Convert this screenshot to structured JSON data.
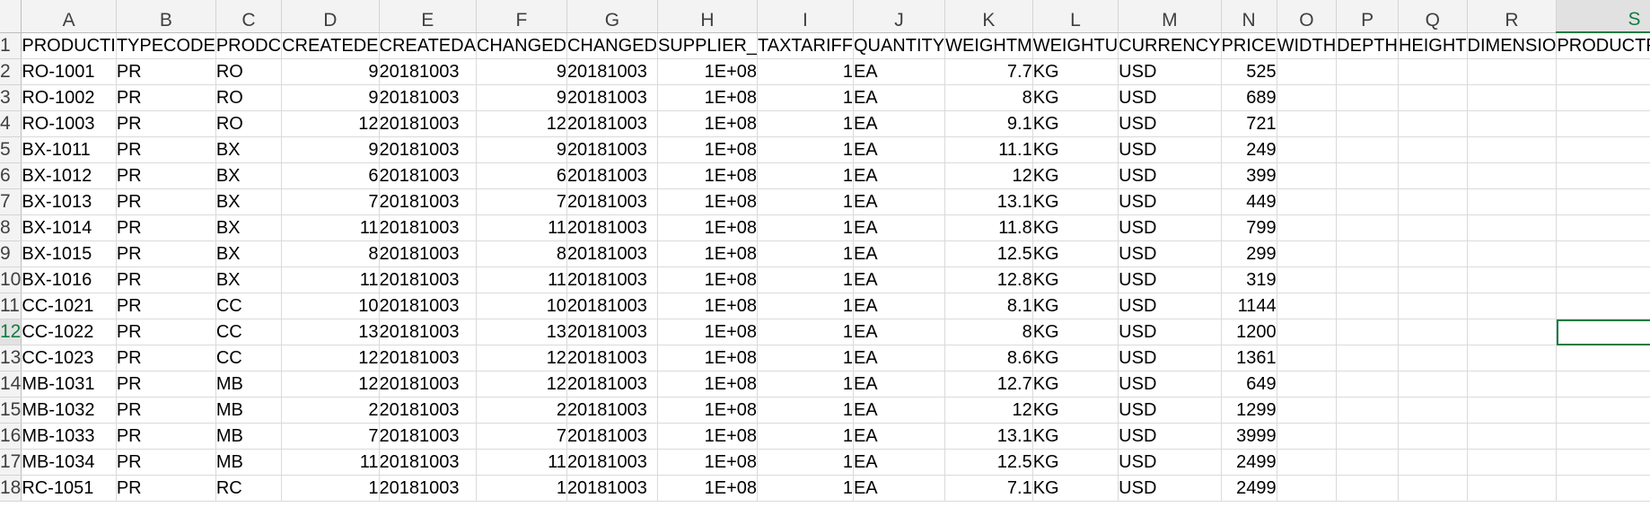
{
  "sheet": {
    "columns": [
      "A",
      "B",
      "C",
      "D",
      "E",
      "F",
      "G",
      "H",
      "I",
      "J",
      "K",
      "L",
      "M",
      "N",
      "O",
      "P",
      "Q",
      "R",
      "S"
    ],
    "column_align": [
      "txt",
      "txt",
      "txt",
      "num",
      "txt",
      "num",
      "txt",
      "num",
      "num",
      "txt",
      "num",
      "txt",
      "txt",
      "num",
      "txt",
      "txt",
      "txt",
      "txt",
      "txt"
    ],
    "selected_column": "S",
    "selected_row": 12,
    "active_cell": "S12",
    "rows": [
      {
        "n": 1,
        "cells": [
          "PRODUCTI",
          "TYPECODE",
          "PRODC",
          "CREATEDE",
          "CREATEDA",
          "CHANGED",
          "CHANGED",
          "SUPPLIER_",
          "TAXTARIFF",
          "QUANTITY",
          "WEIGHTM",
          "WEIGHTU",
          "CURRENCY",
          "PRICE",
          "WIDTH",
          "DEPTH",
          "HEIGHT",
          "DIMENSIO",
          "PRODUCTPICURL"
        ]
      },
      {
        "n": 2,
        "cells": [
          "RO-1001",
          "PR",
          "RO",
          "9",
          "20181003",
          "9",
          "20181003",
          "1E+08",
          "1",
          "EA",
          "7.7",
          "KG",
          "USD",
          "525",
          "",
          "",
          "",
          "",
          ""
        ]
      },
      {
        "n": 3,
        "cells": [
          "RO-1002",
          "PR",
          "RO",
          "9",
          "20181003",
          "9",
          "20181003",
          "1E+08",
          "1",
          "EA",
          "8",
          "KG",
          "USD",
          "689",
          "",
          "",
          "",
          "",
          ""
        ]
      },
      {
        "n": 4,
        "cells": [
          "RO-1003",
          "PR",
          "RO",
          "12",
          "20181003",
          "12",
          "20181003",
          "1E+08",
          "1",
          "EA",
          "9.1",
          "KG",
          "USD",
          "721",
          "",
          "",
          "",
          "",
          ""
        ]
      },
      {
        "n": 5,
        "cells": [
          "BX-1011",
          "PR",
          "BX",
          "9",
          "20181003",
          "9",
          "20181003",
          "1E+08",
          "1",
          "EA",
          "11.1",
          "KG",
          "USD",
          "249",
          "",
          "",
          "",
          "",
          ""
        ]
      },
      {
        "n": 6,
        "cells": [
          "BX-1012",
          "PR",
          "BX",
          "6",
          "20181003",
          "6",
          "20181003",
          "1E+08",
          "1",
          "EA",
          "12",
          "KG",
          "USD",
          "399",
          "",
          "",
          "",
          "",
          ""
        ]
      },
      {
        "n": 7,
        "cells": [
          "BX-1013",
          "PR",
          "BX",
          "7",
          "20181003",
          "7",
          "20181003",
          "1E+08",
          "1",
          "EA",
          "13.1",
          "KG",
          "USD",
          "449",
          "",
          "",
          "",
          "",
          ""
        ]
      },
      {
        "n": 8,
        "cells": [
          "BX-1014",
          "PR",
          "BX",
          "11",
          "20181003",
          "11",
          "20181003",
          "1E+08",
          "1",
          "EA",
          "11.8",
          "KG",
          "USD",
          "799",
          "",
          "",
          "",
          "",
          ""
        ]
      },
      {
        "n": 9,
        "cells": [
          "BX-1015",
          "PR",
          "BX",
          "8",
          "20181003",
          "8",
          "20181003",
          "1E+08",
          "1",
          "EA",
          "12.5",
          "KG",
          "USD",
          "299",
          "",
          "",
          "",
          "",
          ""
        ]
      },
      {
        "n": 10,
        "cells": [
          "BX-1016",
          "PR",
          "BX",
          "11",
          "20181003",
          "11",
          "20181003",
          "1E+08",
          "1",
          "EA",
          "12.8",
          "KG",
          "USD",
          "319",
          "",
          "",
          "",
          "",
          ""
        ]
      },
      {
        "n": 11,
        "cells": [
          "CC-1021",
          "PR",
          "CC",
          "10",
          "20181003",
          "10",
          "20181003",
          "1E+08",
          "1",
          "EA",
          "8.1",
          "KG",
          "USD",
          "1144",
          "",
          "",
          "",
          "",
          ""
        ]
      },
      {
        "n": 12,
        "cells": [
          "CC-1022",
          "PR",
          "CC",
          "13",
          "20181003",
          "13",
          "20181003",
          "1E+08",
          "1",
          "EA",
          "8",
          "KG",
          "USD",
          "1200",
          "",
          "",
          "",
          "",
          ""
        ]
      },
      {
        "n": 13,
        "cells": [
          "CC-1023",
          "PR",
          "CC",
          "12",
          "20181003",
          "12",
          "20181003",
          "1E+08",
          "1",
          "EA",
          "8.6",
          "KG",
          "USD",
          "1361",
          "",
          "",
          "",
          "",
          ""
        ]
      },
      {
        "n": 14,
        "cells": [
          "MB-1031",
          "PR",
          "MB",
          "12",
          "20181003",
          "12",
          "20181003",
          "1E+08",
          "1",
          "EA",
          "12.7",
          "KG",
          "USD",
          "649",
          "",
          "",
          "",
          "",
          ""
        ]
      },
      {
        "n": 15,
        "cells": [
          "MB-1032",
          "PR",
          "MB",
          "2",
          "20181003",
          "2",
          "20181003",
          "1E+08",
          "1",
          "EA",
          "12",
          "KG",
          "USD",
          "1299",
          "",
          "",
          "",
          "",
          ""
        ]
      },
      {
        "n": 16,
        "cells": [
          "MB-1033",
          "PR",
          "MB",
          "7",
          "20181003",
          "7",
          "20181003",
          "1E+08",
          "1",
          "EA",
          "13.1",
          "KG",
          "USD",
          "3999",
          "",
          "",
          "",
          "",
          ""
        ]
      },
      {
        "n": 17,
        "cells": [
          "MB-1034",
          "PR",
          "MB",
          "11",
          "20181003",
          "11",
          "20181003",
          "1E+08",
          "1",
          "EA",
          "12.5",
          "KG",
          "USD",
          "2499",
          "",
          "",
          "",
          "",
          ""
        ]
      },
      {
        "n": 18,
        "cells": [
          "RC-1051",
          "PR",
          "RC",
          "1",
          "20181003",
          "1",
          "20181003",
          "1E+08",
          "1",
          "EA",
          "7.1",
          "KG",
          "USD",
          "2499",
          "",
          "",
          "",
          "",
          ""
        ]
      }
    ]
  },
  "colors": {
    "accent": "#107c41",
    "header_bg": "#f3f3f3",
    "gridline": "#dadada"
  }
}
